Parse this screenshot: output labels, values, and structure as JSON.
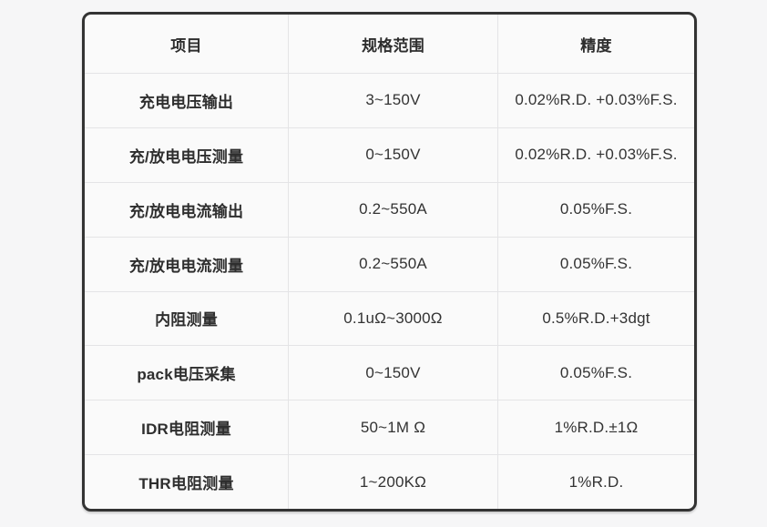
{
  "colors": {
    "page_bg": "#f6f6f7",
    "table_bg": "#fafafa",
    "table_border": "#333333",
    "divider": "#e4e4e6",
    "text": "#333333",
    "text_bold": "#2e2e2e"
  },
  "table": {
    "headers": [
      "项目",
      "规格范围",
      "精度"
    ],
    "rows": [
      {
        "item": "充电电压输出",
        "range": "3~150V",
        "accuracy": "0.02%R.D. +0.03%F.S."
      },
      {
        "item": "充/放电电压测量",
        "range": "0~150V",
        "accuracy": "0.02%R.D. +0.03%F.S."
      },
      {
        "item": "充/放电电流输出",
        "range": "0.2~550A",
        "accuracy": "0.05%F.S."
      },
      {
        "item": "充/放电电流测量",
        "range": "0.2~550A",
        "accuracy": "0.05%F.S."
      },
      {
        "item": "内阻测量",
        "range": "0.1uΩ~3000Ω",
        "accuracy": "0.5%R.D.+3dgt"
      },
      {
        "item": "pack电压采集",
        "range": "0~150V",
        "accuracy": "0.05%F.S."
      },
      {
        "item": "IDR电阻测量",
        "range": "50~1M Ω",
        "accuracy": "1%R.D.±1Ω"
      },
      {
        "item": "THR电阻测量",
        "range": "1~200KΩ",
        "accuracy": "1%R.D."
      }
    ]
  },
  "chart_data": {
    "type": "table",
    "title": "",
    "columns": [
      "项目",
      "规格范围",
      "精度"
    ],
    "rows": [
      [
        "充电电压输出",
        "3~150V",
        "0.02%R.D. +0.03%F.S."
      ],
      [
        "充/放电电压测量",
        "0~150V",
        "0.02%R.D. +0.03%F.S."
      ],
      [
        "充/放电电流输出",
        "0.2~550A",
        "0.05%F.S."
      ],
      [
        "充/放电电流测量",
        "0.2~550A",
        "0.05%F.S."
      ],
      [
        "内阻测量",
        "0.1uΩ~3000Ω",
        "0.5%R.D.+3dgt"
      ],
      [
        "pack电压采集",
        "0~150V",
        "0.05%F.S."
      ],
      [
        "IDR电阻测量",
        "50~1M Ω",
        "1%R.D.±1Ω"
      ],
      [
        "THR电阻测量",
        "1~200KΩ",
        "1%R.D."
      ]
    ]
  }
}
